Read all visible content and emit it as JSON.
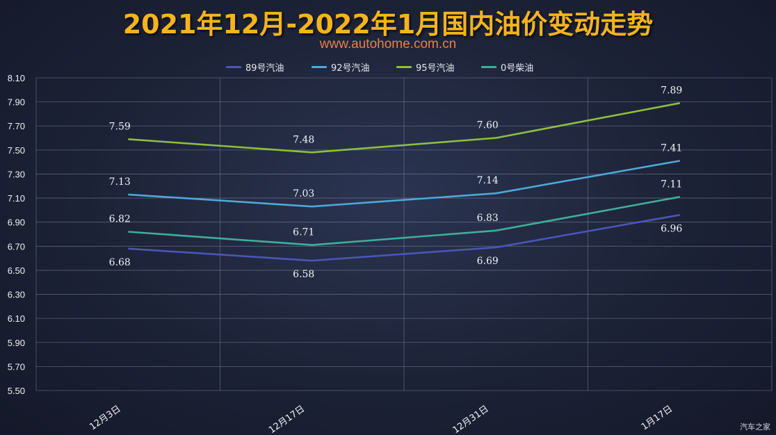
{
  "title": "2021年12月-2022年1月国内油价变动走势",
  "subtitle": "www.autohome.com.cn",
  "watermark": "汽车之家",
  "colors": {
    "series_89": "#4a56b8",
    "series_92": "#4fa8d8",
    "series_95": "#8dbf3e",
    "series_0": "#3fae9a",
    "grid": "#8a93ab",
    "text": "#f2f4f8"
  },
  "chart_data": {
    "type": "line",
    "title": "2021年12月-2022年1月国内油价变动走势",
    "categories": [
      "12月3日",
      "12月17日",
      "12月31日",
      "1月17日"
    ],
    "ylim": [
      5.5,
      8.1
    ],
    "yticks": [
      "5.50",
      "5.70",
      "5.90",
      "6.10",
      "6.30",
      "6.50",
      "6.70",
      "6.90",
      "7.10",
      "7.30",
      "7.50",
      "7.70",
      "7.90",
      "8.10"
    ],
    "grid": true,
    "legend_position": "top",
    "series": [
      {
        "name": "89号汽油",
        "values": [
          6.68,
          6.58,
          6.69,
          6.96
        ],
        "labels": [
          "6.68",
          "6.58",
          "6.69",
          "6.96"
        ]
      },
      {
        "name": "92号汽油",
        "values": [
          7.13,
          7.03,
          7.14,
          7.41
        ],
        "labels": [
          "7.13",
          "7.03",
          "7.14",
          "7.41"
        ]
      },
      {
        "name": "95号汽油",
        "values": [
          7.59,
          7.48,
          7.6,
          7.89
        ],
        "labels": [
          "7.59",
          "7.48",
          "7.60",
          "7.89"
        ]
      },
      {
        "name": "0号柴油",
        "values": [
          6.82,
          6.71,
          6.83,
          7.11
        ],
        "labels": [
          "6.82",
          "6.71",
          "6.83",
          "7.11"
        ]
      }
    ]
  }
}
